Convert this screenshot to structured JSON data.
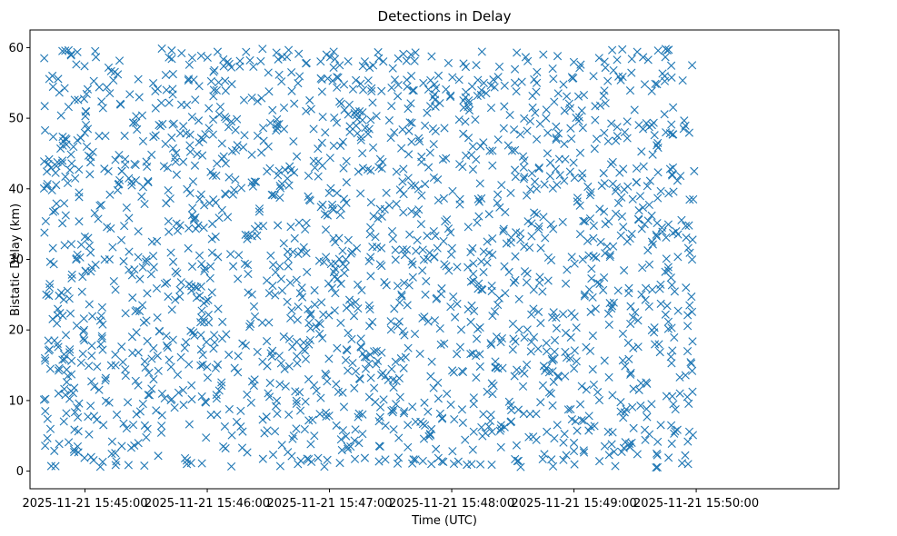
{
  "chart_data": {
    "type": "scatter",
    "title": "Detections in Delay",
    "xlabel": "Time (UTC)",
    "ylabel": "Bistatic Delay (km)",
    "x_range_seconds": [
      -27,
      370
    ],
    "ylim": [
      -2.5,
      62.5
    ],
    "x_ticks": [
      {
        "seconds": 0,
        "label": "2025-11-21 15:45:00"
      },
      {
        "seconds": 60,
        "label": "2025-11-21 15:46:00"
      },
      {
        "seconds": 120,
        "label": "2025-11-21 15:47:00"
      },
      {
        "seconds": 180,
        "label": "2025-11-21 15:48:00"
      },
      {
        "seconds": 240,
        "label": "2025-11-21 15:49:00"
      },
      {
        "seconds": 300,
        "label": "2025-11-21 15:50:00"
      }
    ],
    "y_ticks": [
      0,
      10,
      20,
      30,
      40,
      50,
      60
    ],
    "marker": "x",
    "series_color": "#1f77b4",
    "grid": false,
    "legend": "none",
    "point_count": 2000,
    "points": [
      {
        "t_seconds": -20.0,
        "delay_km": 58.5
      },
      {
        "t_seconds": -16.0,
        "delay_km": 56.0
      },
      {
        "t_seconds": -12.0,
        "delay_km": 45.7
      },
      {
        "t_seconds": -18.0,
        "delay_km": 43.5
      },
      {
        "t_seconds": -14.0,
        "delay_km": 37.9
      },
      {
        "t_seconds": -10.0,
        "delay_km": 32.0
      },
      {
        "t_seconds": -19.0,
        "delay_km": 25.0
      },
      {
        "t_seconds": -15.0,
        "delay_km": 18.5
      },
      {
        "t_seconds": -17.0,
        "delay_km": 14.5
      },
      {
        "t_seconds": -13.0,
        "delay_km": 11.0
      },
      {
        "t_seconds": -19.5,
        "delay_km": 8.5
      },
      {
        "t_seconds": -14.5,
        "delay_km": 0.7
      },
      {
        "t_seconds": 5.0,
        "delay_km": 59.5
      },
      {
        "t_seconds": 10.0,
        "delay_km": 47.5
      },
      {
        "t_seconds": 12.0,
        "delay_km": 30.0
      },
      {
        "t_seconds": 8.0,
        "delay_km": 22.0
      },
      {
        "t_seconds": 3.0,
        "delay_km": 2.0
      },
      {
        "t_seconds": 15.0,
        "delay_km": 15.0
      },
      {
        "t_seconds": 40.0,
        "delay_km": 54.0
      },
      {
        "t_seconds": 45.0,
        "delay_km": 42.0
      },
      {
        "t_seconds": 55.0,
        "delay_km": 26.0
      },
      {
        "t_seconds": 50.0,
        "delay_km": 1.0
      },
      {
        "t_seconds": 70.0,
        "delay_km": 58.0
      },
      {
        "t_seconds": 75.0,
        "delay_km": 14.0
      },
      {
        "t_seconds": 90.0,
        "delay_km": 46.0
      },
      {
        "t_seconds": 100.0,
        "delay_km": 8.0
      },
      {
        "t_seconds": 125.0,
        "delay_km": 57.5
      },
      {
        "t_seconds": 128.0,
        "delay_km": 30.0
      },
      {
        "t_seconds": 140.0,
        "delay_km": 16.5
      },
      {
        "t_seconds": 160.0,
        "delay_km": 59.0
      },
      {
        "t_seconds": 165.0,
        "delay_km": 35.0
      },
      {
        "t_seconds": 170.0,
        "delay_km": 1.0
      },
      {
        "t_seconds": 190.0,
        "delay_km": 54.5
      },
      {
        "t_seconds": 200.0,
        "delay_km": 22.0
      },
      {
        "t_seconds": 215.0,
        "delay_km": 12.0
      },
      {
        "t_seconds": 225.0,
        "delay_km": 36.0
      },
      {
        "t_seconds": 240.0,
        "delay_km": 4.0
      },
      {
        "t_seconds": 255.0,
        "delay_km": 58.0
      },
      {
        "t_seconds": 270.0,
        "delay_km": 22.5
      },
      {
        "t_seconds": 285.0,
        "delay_km": 59.8
      },
      {
        "t_seconds": 292.0,
        "delay_km": 11.0
      },
      {
        "t_seconds": 298.0,
        "delay_km": 57.5
      },
      {
        "t_seconds": 298.5,
        "delay_km": 38.5
      },
      {
        "t_seconds": 298.0,
        "delay_km": 14.2
      },
      {
        "t_seconds": 296.0,
        "delay_km": 1.0
      },
      {
        "t_seconds": 299.0,
        "delay_km": 42.5
      }
    ],
    "fill_distribution": {
      "t_seconds_range": [
        -20.5,
        298.5
      ],
      "delay_km_range": [
        0.5,
        60.0
      ],
      "seed": 20251121
    }
  }
}
